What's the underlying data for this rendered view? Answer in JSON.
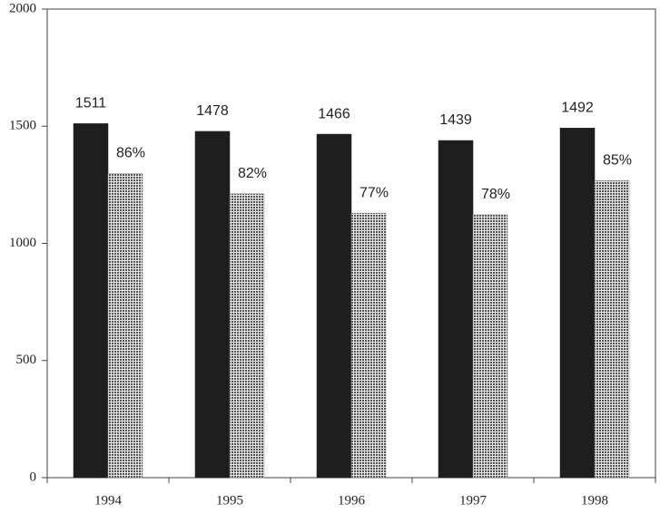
{
  "chart_data": {
    "type": "bar",
    "categories": [
      "1994",
      "1995",
      "1996",
      "1997",
      "1998"
    ],
    "series": [
      {
        "color": "#1e1e1e",
        "values": [
          1511,
          1478,
          1466,
          1439,
          1492
        ]
      },
      {
        "color": "#8a8a8a",
        "pattern": "dots",
        "values": [
          1299,
          1212,
          1129,
          1122,
          1268
        ],
        "value_labels": [
          "86%",
          "82%",
          "77%",
          "78%",
          "85%"
        ]
      }
    ],
    "ylim": [
      0,
      2000
    ],
    "yticks": [
      0,
      500,
      1000,
      1500,
      2000
    ],
    "grid": false
  }
}
